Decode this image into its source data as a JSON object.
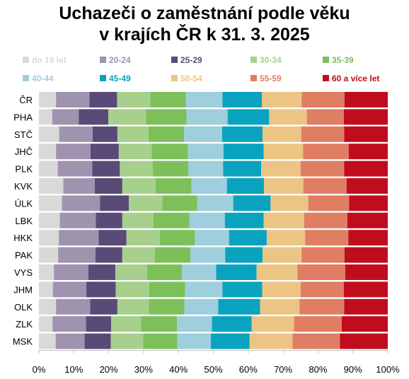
{
  "chart_data": {
    "type": "bar",
    "stacked": true,
    "orientation": "horizontal",
    "title_lines": [
      "Uchazeči o zaměstnání podle věku",
      "v krajích ČR k 31. 3. 2025"
    ],
    "categories": [
      "ČR",
      "PHA",
      "STČ",
      "JHČ",
      "PLK",
      "KVK",
      "ÚLK",
      "LBK",
      "HKK",
      "PAK",
      "VYS",
      "JHM",
      "OLK",
      "ZLK",
      "MSK"
    ],
    "x_ticks": [
      "0%",
      "10%",
      "20%",
      "30%",
      "40%",
      "50%",
      "60%",
      "70%",
      "80%",
      "90%",
      "100%"
    ],
    "xlim": [
      0,
      100
    ],
    "legend_position": "top",
    "series": [
      {
        "name": "do 19 let",
        "color": "#d9d9d9",
        "values": [
          4.9,
          3.8,
          5.8,
          4.9,
          5.4,
          7.0,
          6.6,
          6.0,
          5.7,
          5.5,
          4.3,
          4.0,
          4.9,
          3.9,
          4.8
        ]
      },
      {
        "name": "20-24",
        "color": "#9f93b0",
        "values": [
          9.6,
          7.6,
          9.6,
          9.9,
          9.9,
          9.0,
          10.9,
          10.3,
          11.4,
          10.7,
          9.9,
          9.6,
          9.8,
          9.6,
          8.3
        ]
      },
      {
        "name": "25-29",
        "color": "#5a4a78",
        "values": [
          7.9,
          8.5,
          7.1,
          8.1,
          7.9,
          7.9,
          8.3,
          7.6,
          8.0,
          7.7,
          7.7,
          8.4,
          7.8,
          7.2,
          7.5
        ]
      },
      {
        "name": "30-34",
        "color": "#a6d08c",
        "values": [
          9.5,
          10.8,
          8.9,
          9.4,
          9.4,
          9.5,
          9.6,
          8.9,
          9.6,
          9.3,
          9.1,
          9.6,
          9.0,
          8.6,
          9.3
        ]
      },
      {
        "name": "35-39",
        "color": "#7dc05a",
        "values": [
          10.2,
          11.6,
          10.2,
          10.4,
          10.2,
          10.3,
          10.0,
          10.3,
          10.0,
          10.2,
          10.0,
          10.3,
          10.2,
          10.3,
          9.8
        ]
      },
      {
        "name": "40-44",
        "color": "#9fcedd",
        "values": [
          10.5,
          11.8,
          10.9,
          10.2,
          10.0,
          10.2,
          10.3,
          10.2,
          9.8,
          10.0,
          9.8,
          10.7,
          9.7,
          10.0,
          9.6
        ]
      },
      {
        "name": "45-49",
        "color": "#0aa3bf",
        "values": [
          11.3,
          11.9,
          11.6,
          11.5,
          10.9,
          10.6,
          10.7,
          11.1,
          10.8,
          10.7,
          11.6,
          11.4,
          12.0,
          11.4,
          11.1
        ]
      },
      {
        "name": "50-54",
        "color": "#ecc584",
        "values": [
          11.4,
          10.8,
          11.1,
          11.3,
          11.3,
          11.3,
          10.8,
          11.6,
          11.0,
          11.2,
          11.7,
          11.0,
          11.3,
          12.1,
          12.3
        ]
      },
      {
        "name": "55-59",
        "color": "#e07e64",
        "values": [
          12.3,
          10.6,
          12.3,
          13.1,
          12.5,
          12.4,
          11.7,
          12.4,
          12.4,
          12.3,
          13.7,
          12.4,
          12.8,
          13.7,
          13.6
        ]
      },
      {
        "name": "60 a více let",
        "color": "#c00d1e",
        "values": [
          12.4,
          12.6,
          12.5,
          11.2,
          12.5,
          11.8,
          11.1,
          11.6,
          11.3,
          12.4,
          12.2,
          12.6,
          12.5,
          13.2,
          13.7
        ]
      }
    ]
  }
}
